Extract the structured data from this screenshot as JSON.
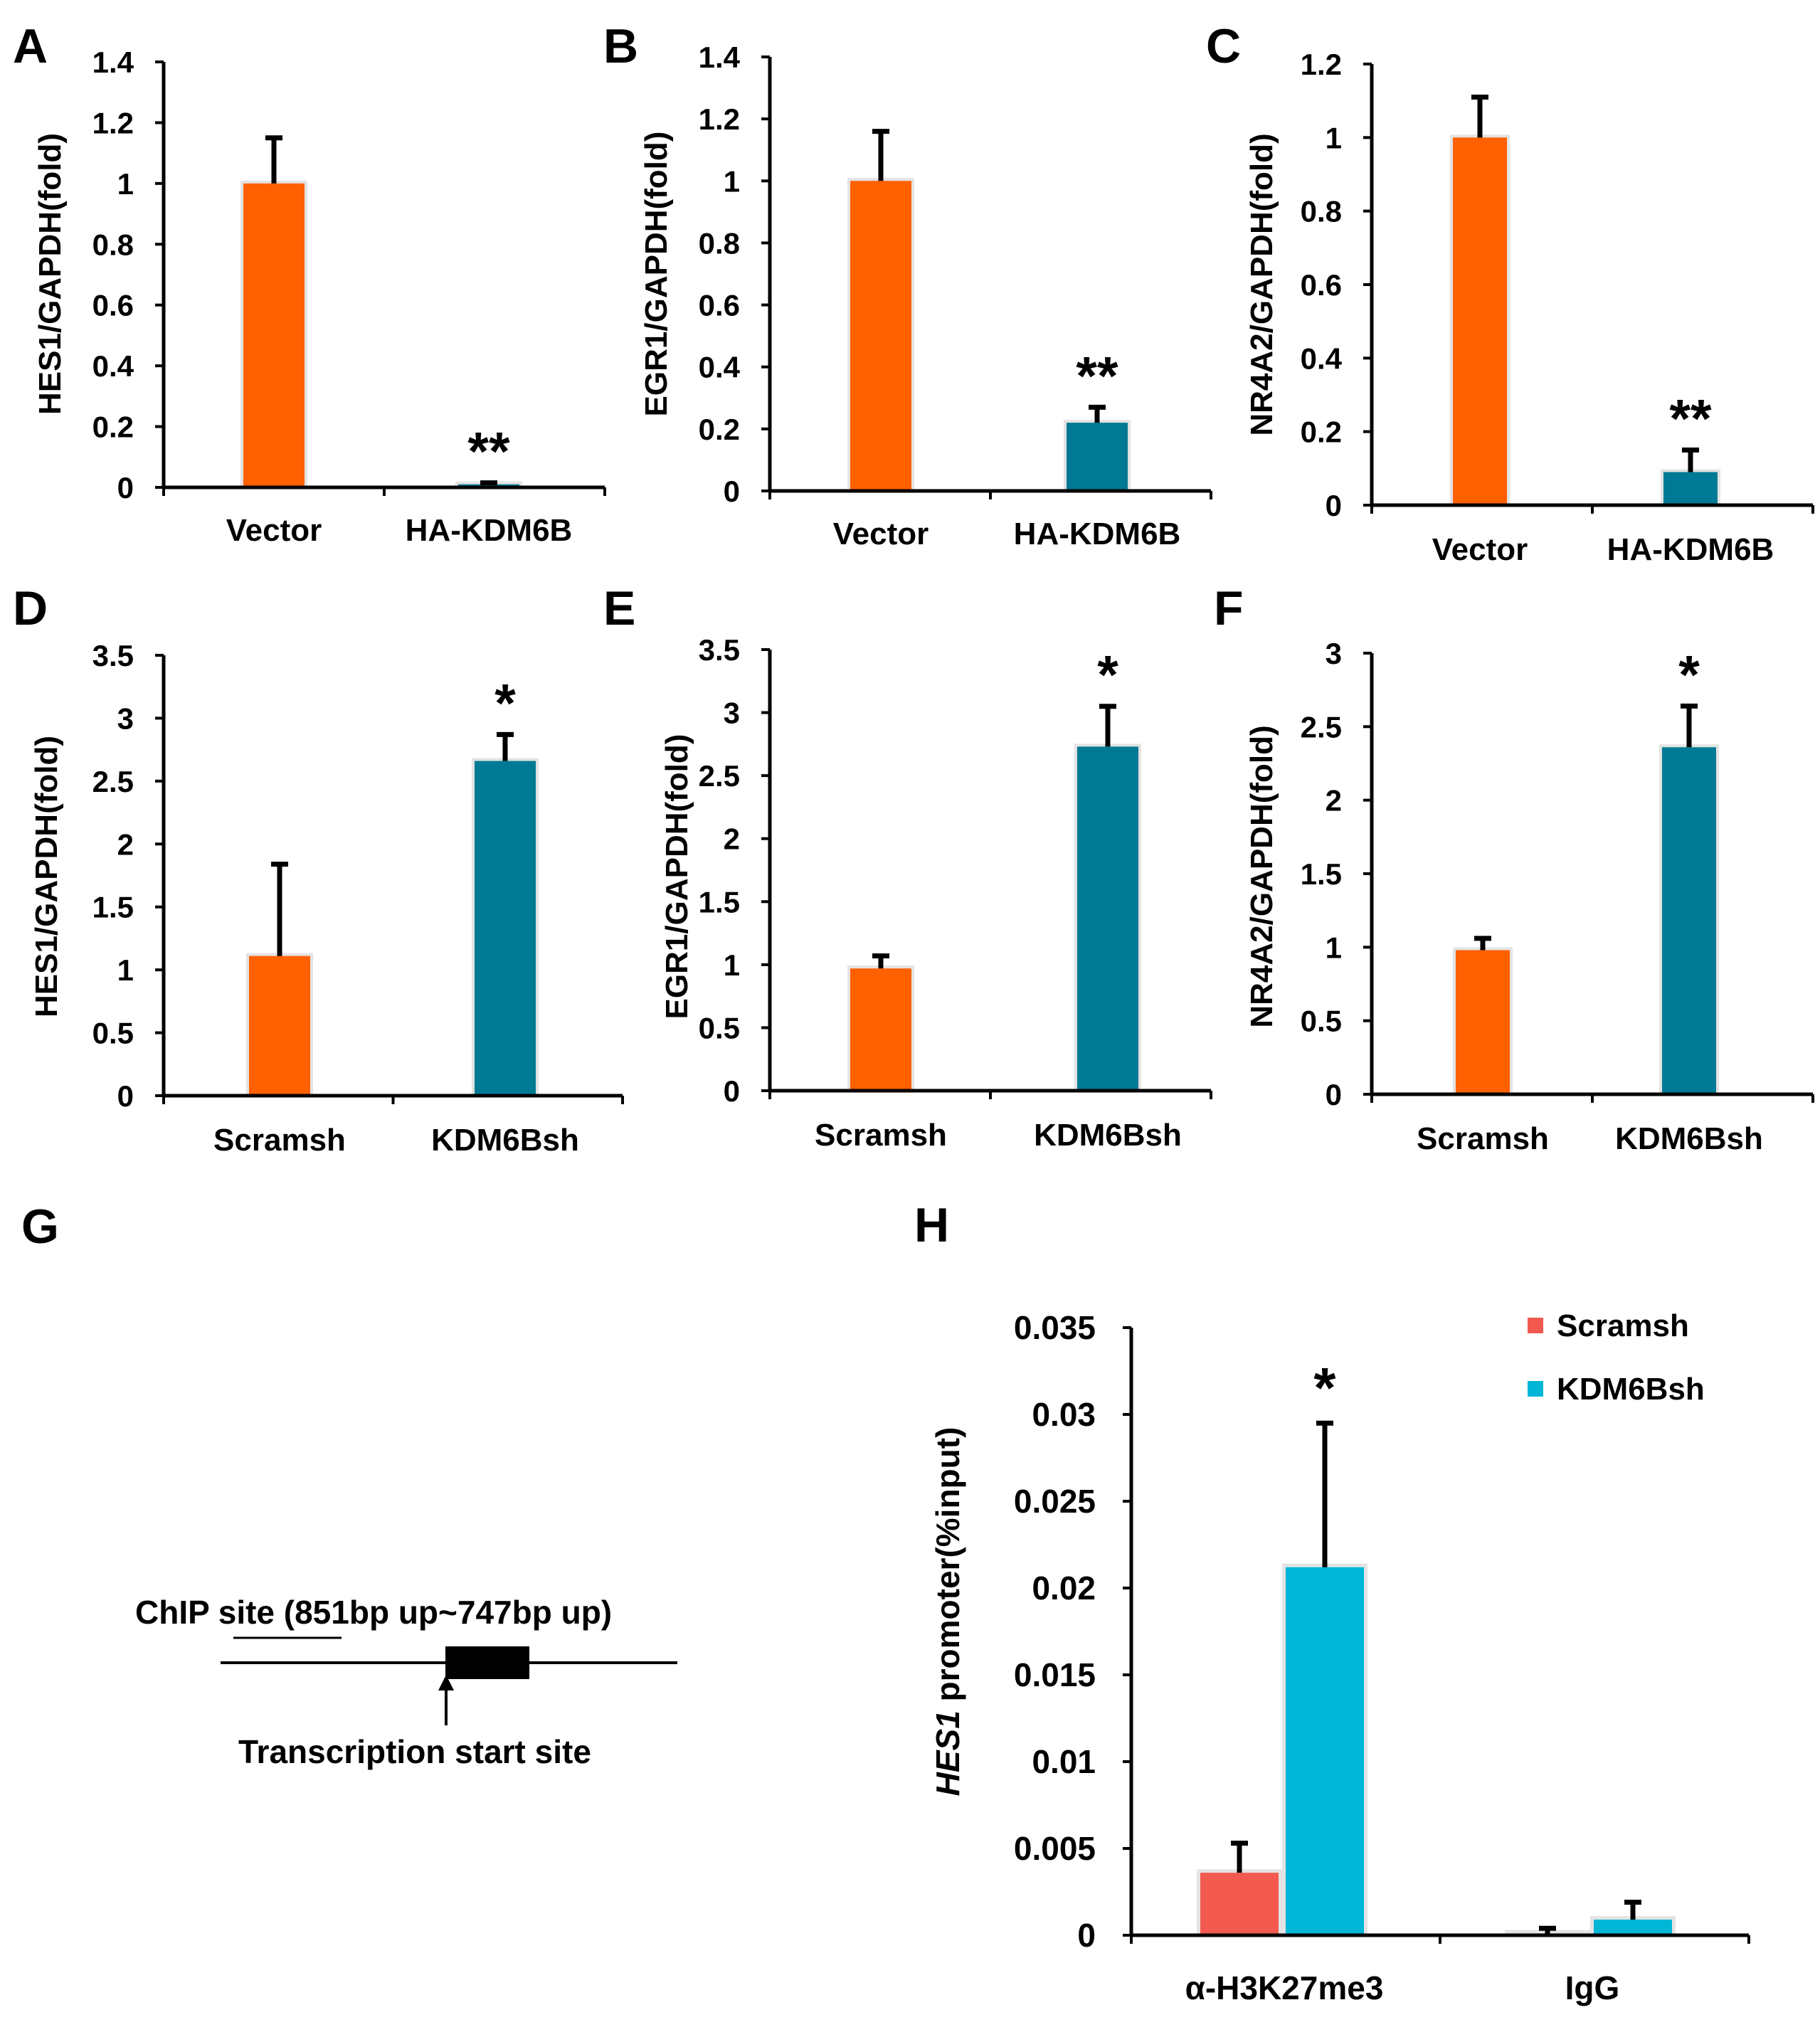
{
  "colors": {
    "orange": "#FF6000",
    "teal": "#007A94",
    "salmon": "#F25A50",
    "cyan": "#00B6D6",
    "halo": "#E3E3E3"
  },
  "chart_data": [
    {
      "type": "bar",
      "panel": "A",
      "ylabel": "HES1/GAPDH(fold)",
      "categories": [
        "Vector",
        "HA-KDM6B"
      ],
      "values": [
        1.0,
        0.01
      ],
      "errors": [
        0.15,
        0.005
      ],
      "colors": [
        "orange",
        "teal"
      ],
      "ylim": [
        0,
        1.4
      ],
      "step": 0.2,
      "ticks": [
        "0",
        "0.2",
        "0.4",
        "0.6",
        "0.8",
        "1",
        "1.2",
        "1.4"
      ],
      "annotations": [
        "",
        "**"
      ]
    },
    {
      "type": "bar",
      "panel": "B",
      "ylabel": "EGR1/GAPDH(fold)",
      "categories": [
        "Vector",
        "HA-KDM6B"
      ],
      "values": [
        1.0,
        0.22
      ],
      "errors": [
        0.16,
        0.05
      ],
      "colors": [
        "orange",
        "teal"
      ],
      "ylim": [
        0,
        1.4
      ],
      "step": 0.2,
      "ticks": [
        "0",
        "0.2",
        "0.4",
        "0.6",
        "0.8",
        "1",
        "1.2",
        "1.4"
      ],
      "annotations": [
        "",
        "**"
      ]
    },
    {
      "type": "bar",
      "panel": "C",
      "ylabel": "NR4A2/GAPDH(fold)",
      "categories": [
        "Vector",
        "HA-KDM6B"
      ],
      "values": [
        1.0,
        0.09
      ],
      "errors": [
        0.11,
        0.06
      ],
      "colors": [
        "orange",
        "teal"
      ],
      "ylim": [
        0,
        1.2
      ],
      "step": 0.2,
      "ticks": [
        "0",
        "0.2",
        "0.4",
        "0.6",
        "0.8",
        "1",
        "1.2"
      ],
      "annotations": [
        "",
        "**"
      ]
    },
    {
      "type": "bar",
      "panel": "D",
      "ylabel": "HES1/GAPDH(fold)",
      "categories": [
        "Scramsh",
        "KDM6Bsh"
      ],
      "values": [
        1.11,
        2.66
      ],
      "errors": [
        0.73,
        0.21
      ],
      "colors": [
        "orange",
        "teal"
      ],
      "ylim": [
        0,
        3.5
      ],
      "step": 0.5,
      "ticks": [
        "0",
        "0.5",
        "1",
        "1.5",
        "2",
        "2.5",
        "3",
        "3.5"
      ],
      "annotations": [
        "",
        "*"
      ]
    },
    {
      "type": "bar",
      "panel": "E",
      "ylabel": "EGR1/GAPDH(fold)",
      "categories": [
        "Scramsh",
        "KDM6Bsh"
      ],
      "values": [
        0.97,
        2.73
      ],
      "errors": [
        0.1,
        0.32
      ],
      "colors": [
        "orange",
        "teal"
      ],
      "ylim": [
        0,
        3.5
      ],
      "step": 0.5,
      "ticks": [
        "0",
        "0.5",
        "1",
        "1.5",
        "2",
        "2.5",
        "3",
        "3.5"
      ],
      "annotations": [
        "",
        "*"
      ]
    },
    {
      "type": "bar",
      "panel": "F",
      "ylabel": "NR4A2/GAPDH(fold)",
      "categories": [
        "Scramsh",
        "KDM6Bsh"
      ],
      "values": [
        0.98,
        2.36
      ],
      "errors": [
        0.08,
        0.28
      ],
      "colors": [
        "orange",
        "teal"
      ],
      "ylim": [
        0,
        3
      ],
      "step": 0.5,
      "ticks": [
        "0",
        "0.5",
        "1",
        "1.5",
        "2",
        "2.5",
        "3"
      ],
      "annotations": [
        "",
        "*"
      ]
    },
    {
      "type": "bar",
      "panel": "H",
      "ylabel_italic": "HES1",
      "ylabel": " promoter(%input)",
      "categories": [
        "α-H3K27me3",
        "IgG"
      ],
      "series": [
        {
          "name": "Scramsh",
          "color": "salmon",
          "values": [
            0.0036,
            0.0001
          ],
          "errors": [
            0.0017,
            0.0003
          ]
        },
        {
          "name": "KDM6Bsh",
          "color": "cyan",
          "values": [
            0.0212,
            0.0009
          ],
          "errors": [
            0.0083,
            0.001
          ]
        }
      ],
      "ylim": [
        0,
        0.035
      ],
      "step": 0.005,
      "ticks": [
        "0",
        "0.005",
        "0.01",
        "0.015",
        "0.02",
        "0.025",
        "0.03",
        "0.035"
      ],
      "annotations": [
        [
          "",
          "*"
        ],
        [
          "",
          ""
        ]
      ],
      "legend_position": "top-right"
    }
  ],
  "diagram_g": {
    "panel": "G",
    "chip_label": "ChIP site (851bp up~747bp up)",
    "tss_label": "Transcription start site"
  }
}
